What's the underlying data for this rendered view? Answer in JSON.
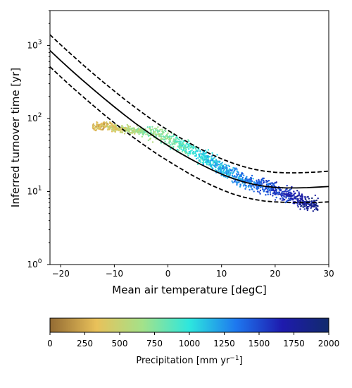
{
  "chart_data": {
    "type": "scatter",
    "title": "",
    "xlabel": "Mean air temperature [degC]",
    "ylabel": "Inferred turnover time [yr]",
    "xlim": [
      -22,
      30
    ],
    "ylim": [
      1,
      3000
    ],
    "yscale": "log",
    "xticks": [
      -20,
      -10,
      0,
      10,
      20,
      30
    ],
    "yticks": [
      {
        "value": 1,
        "label": "10",
        "exp": "0"
      },
      {
        "value": 10,
        "label": "10",
        "exp": "1"
      },
      {
        "value": 100,
        "label": "10",
        "exp": "2"
      },
      {
        "value": 1000,
        "label": "10",
        "exp": "3"
      }
    ],
    "fit_curve": {
      "name": "",
      "x": [
        -22,
        -20,
        -18,
        -16,
        -14,
        -12,
        -10,
        -8,
        -6,
        -4,
        -2,
        0,
        2,
        4,
        6,
        8,
        10,
        12,
        14,
        16,
        18,
        20,
        22,
        24,
        26,
        28,
        30
      ],
      "center": [
        850,
        620,
        455,
        338,
        253,
        190,
        144,
        110,
        85,
        67,
        53,
        42.5,
        34.5,
        28.5,
        23.8,
        20.1,
        17.3,
        15.2,
        13.6,
        12.5,
        11.8,
        11.4,
        11.2,
        11.2,
        11.3,
        11.5,
        11.7
      ],
      "upper": [
        1400,
        1020,
        750,
        555,
        415,
        312,
        237,
        181,
        140,
        109,
        86,
        69,
        56,
        46,
        38.5,
        32.5,
        28,
        24.6,
        22,
        20.2,
        19,
        18.3,
        18,
        18,
        18.2,
        18.5,
        19
      ],
      "lower": [
        510,
        372,
        273,
        203,
        152,
        114,
        87,
        67,
        52,
        41,
        32.5,
        26.3,
        21.4,
        17.5,
        14.6,
        12.3,
        10.6,
        9.3,
        8.4,
        7.8,
        7.4,
        7.2,
        7.1,
        7.05,
        7.05,
        7.1,
        7.2
      ]
    },
    "scatter_summary": {
      "x": [
        -14,
        -12,
        -10,
        -8,
        -6,
        -4,
        -2,
        0,
        2,
        4,
        6,
        8,
        10,
        12,
        14,
        16,
        18,
        20,
        22,
        24,
        26,
        28
      ],
      "y": [
        75,
        80,
        75,
        70,
        68,
        65,
        60,
        55,
        45,
        38,
        32,
        26,
        21,
        17,
        14,
        13,
        12,
        10.5,
        9,
        8,
        7,
        6.5
      ],
      "precipitation": [
        300,
        320,
        400,
        550,
        650,
        700,
        720,
        760,
        850,
        950,
        1050,
        1100,
        1150,
        1200,
        1300,
        1400,
        1450,
        1550,
        1600,
        1700,
        1800,
        1850
      ]
    },
    "colorbar": {
      "label": "Precipitation [mm yr",
      "label_sup": "−1",
      "label_end": "]",
      "min": 0,
      "max": 2000,
      "ticks": [
        0,
        250,
        500,
        750,
        1000,
        1250,
        1500,
        1750,
        2000
      ],
      "colors": [
        "#936b33",
        "#e9c15a",
        "#a3e28a",
        "#2de7de",
        "#1e78ef",
        "#1e1aae",
        "#112b6c"
      ]
    }
  }
}
